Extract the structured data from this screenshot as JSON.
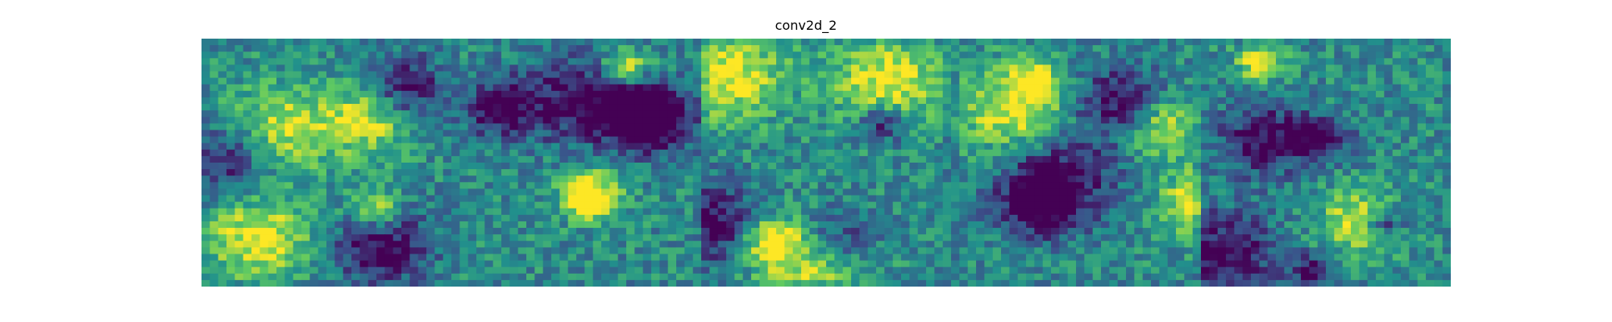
{
  "chart_data": {
    "type": "heatmap",
    "title": "conv2d_2",
    "panels": 5,
    "grid": false,
    "colormap": "viridis",
    "colors": {
      "low": "#440154",
      "mid": "#21918c",
      "high": "#fde725"
    }
  }
}
